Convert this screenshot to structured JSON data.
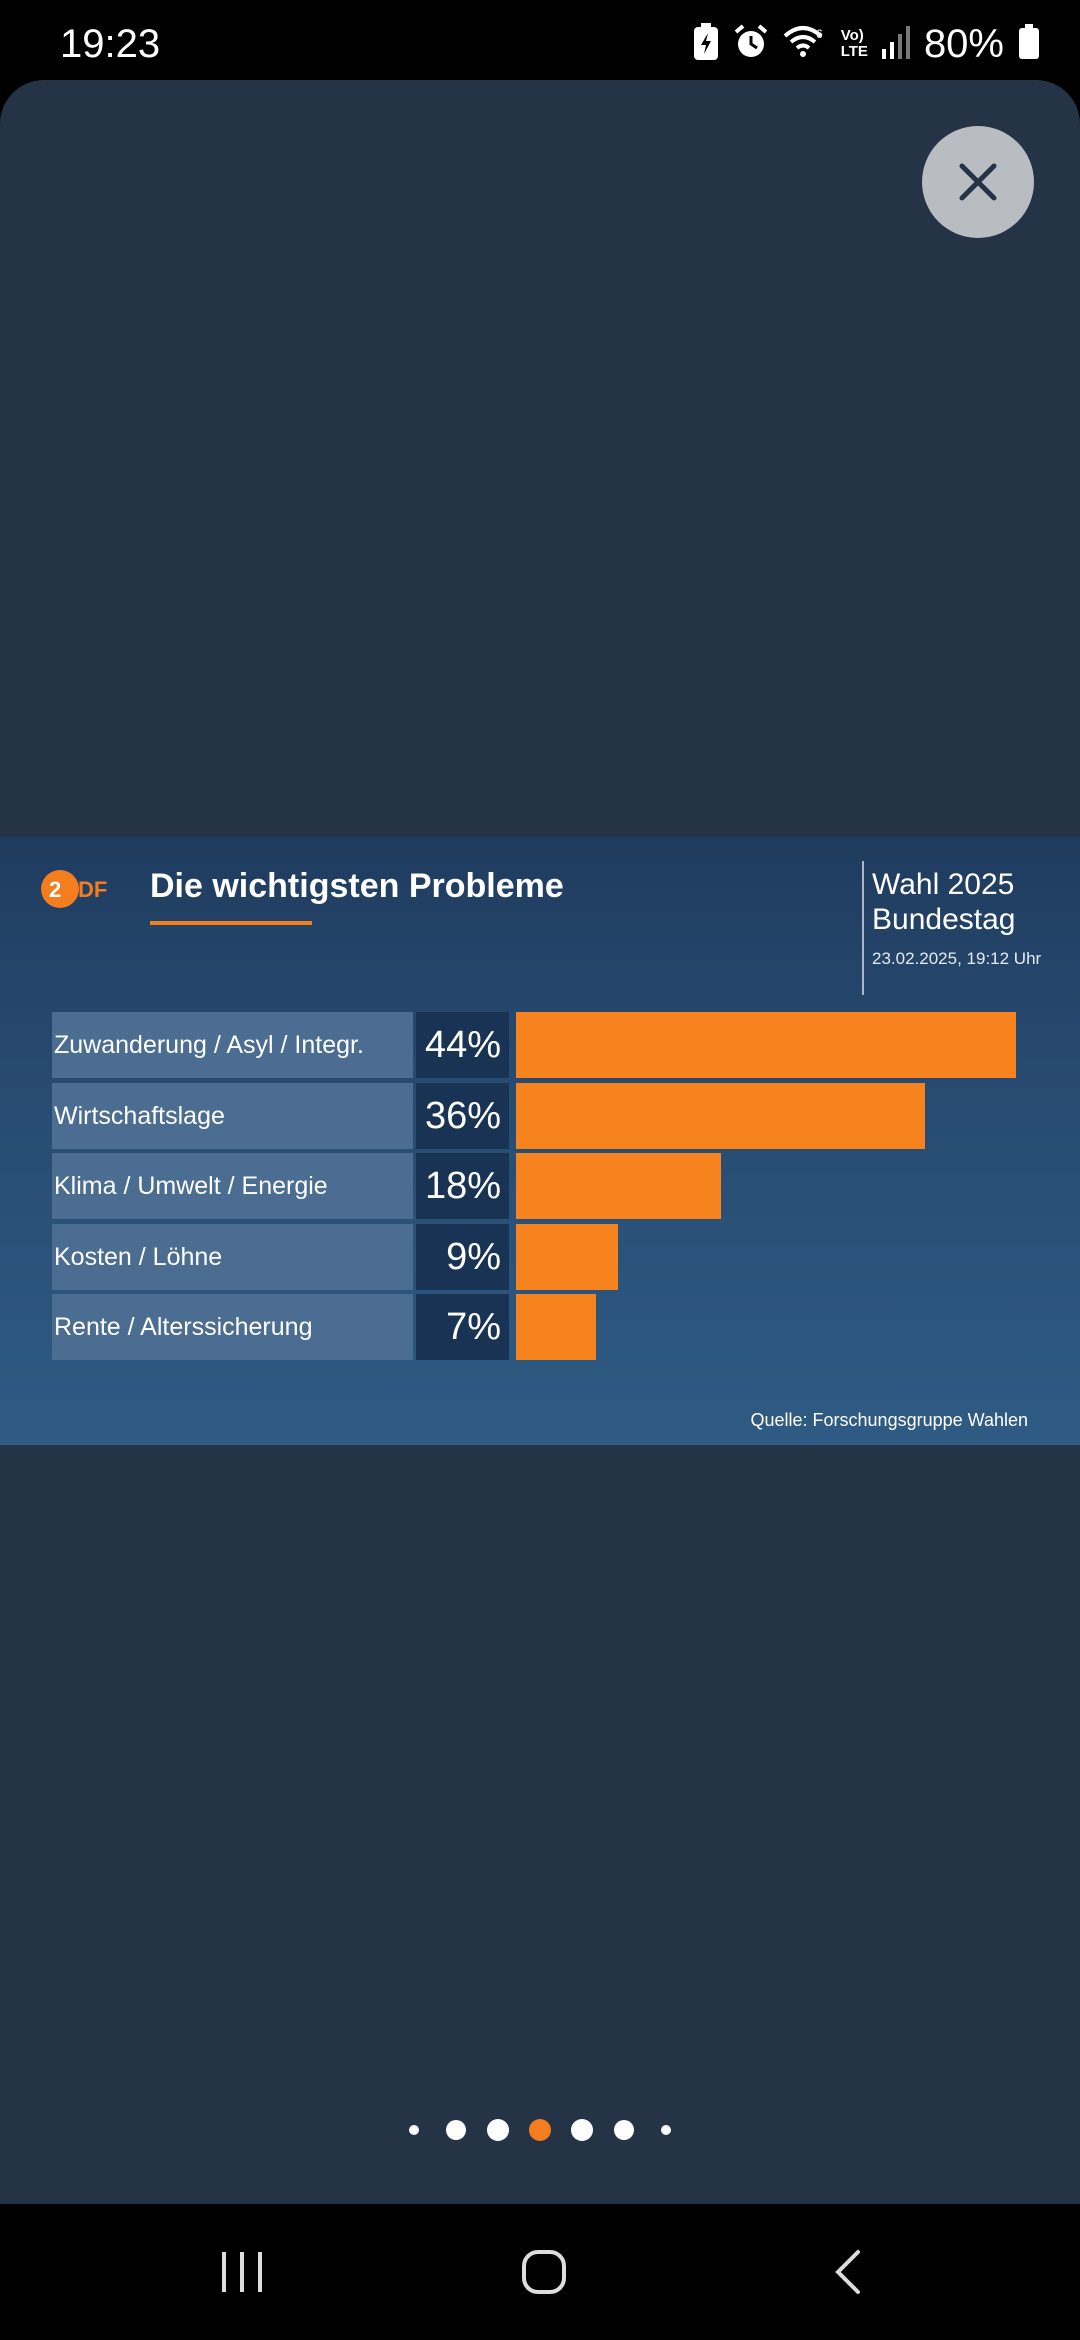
{
  "status_bar": {
    "time": "19:23",
    "battery_percent": "80%",
    "icons": [
      "battery-saver-icon",
      "alarm-icon",
      "wifi-6-icon",
      "volte-icon",
      "signal-icon",
      "battery-icon"
    ],
    "volte_line1": "Vo)",
    "volte_line2": "LTE"
  },
  "viewer": {
    "close_icon": "close-icon",
    "colors": {
      "background": "#243346",
      "close_button": "#b9bcc1"
    }
  },
  "graphic": {
    "logo_text": "ZDF",
    "title": "Die wichtigsten Probleme",
    "election_line1": "Wahl 2025",
    "election_line2": "Bundestag",
    "date": "23.02.2025, 19:12 Uhr",
    "source": "Quelle: Forschungsgruppe Wahlen",
    "accent_color": "#f7831f"
  },
  "chart_data": {
    "type": "bar",
    "title": "Die wichtigsten Probleme",
    "categories": [
      "Zuwanderung / Asyl / Integr.",
      "Wirtschaftslage",
      "Klima / Umwelt / Energie",
      "Kosten / Löhne",
      "Rente / Alterssicherung"
    ],
    "values": [
      44,
      36,
      18,
      9,
      7
    ],
    "value_labels": [
      "44%",
      "36%",
      "18%",
      "9%",
      "7%"
    ],
    "orientation": "horizontal",
    "unit": "%",
    "grid": false
  },
  "pagination": {
    "count": 7,
    "active_index": 3,
    "active_color": "#f47d1f"
  },
  "nav_bar": {
    "recents_icon": "recents-icon",
    "home_icon": "home-icon",
    "back_icon": "back-icon"
  }
}
